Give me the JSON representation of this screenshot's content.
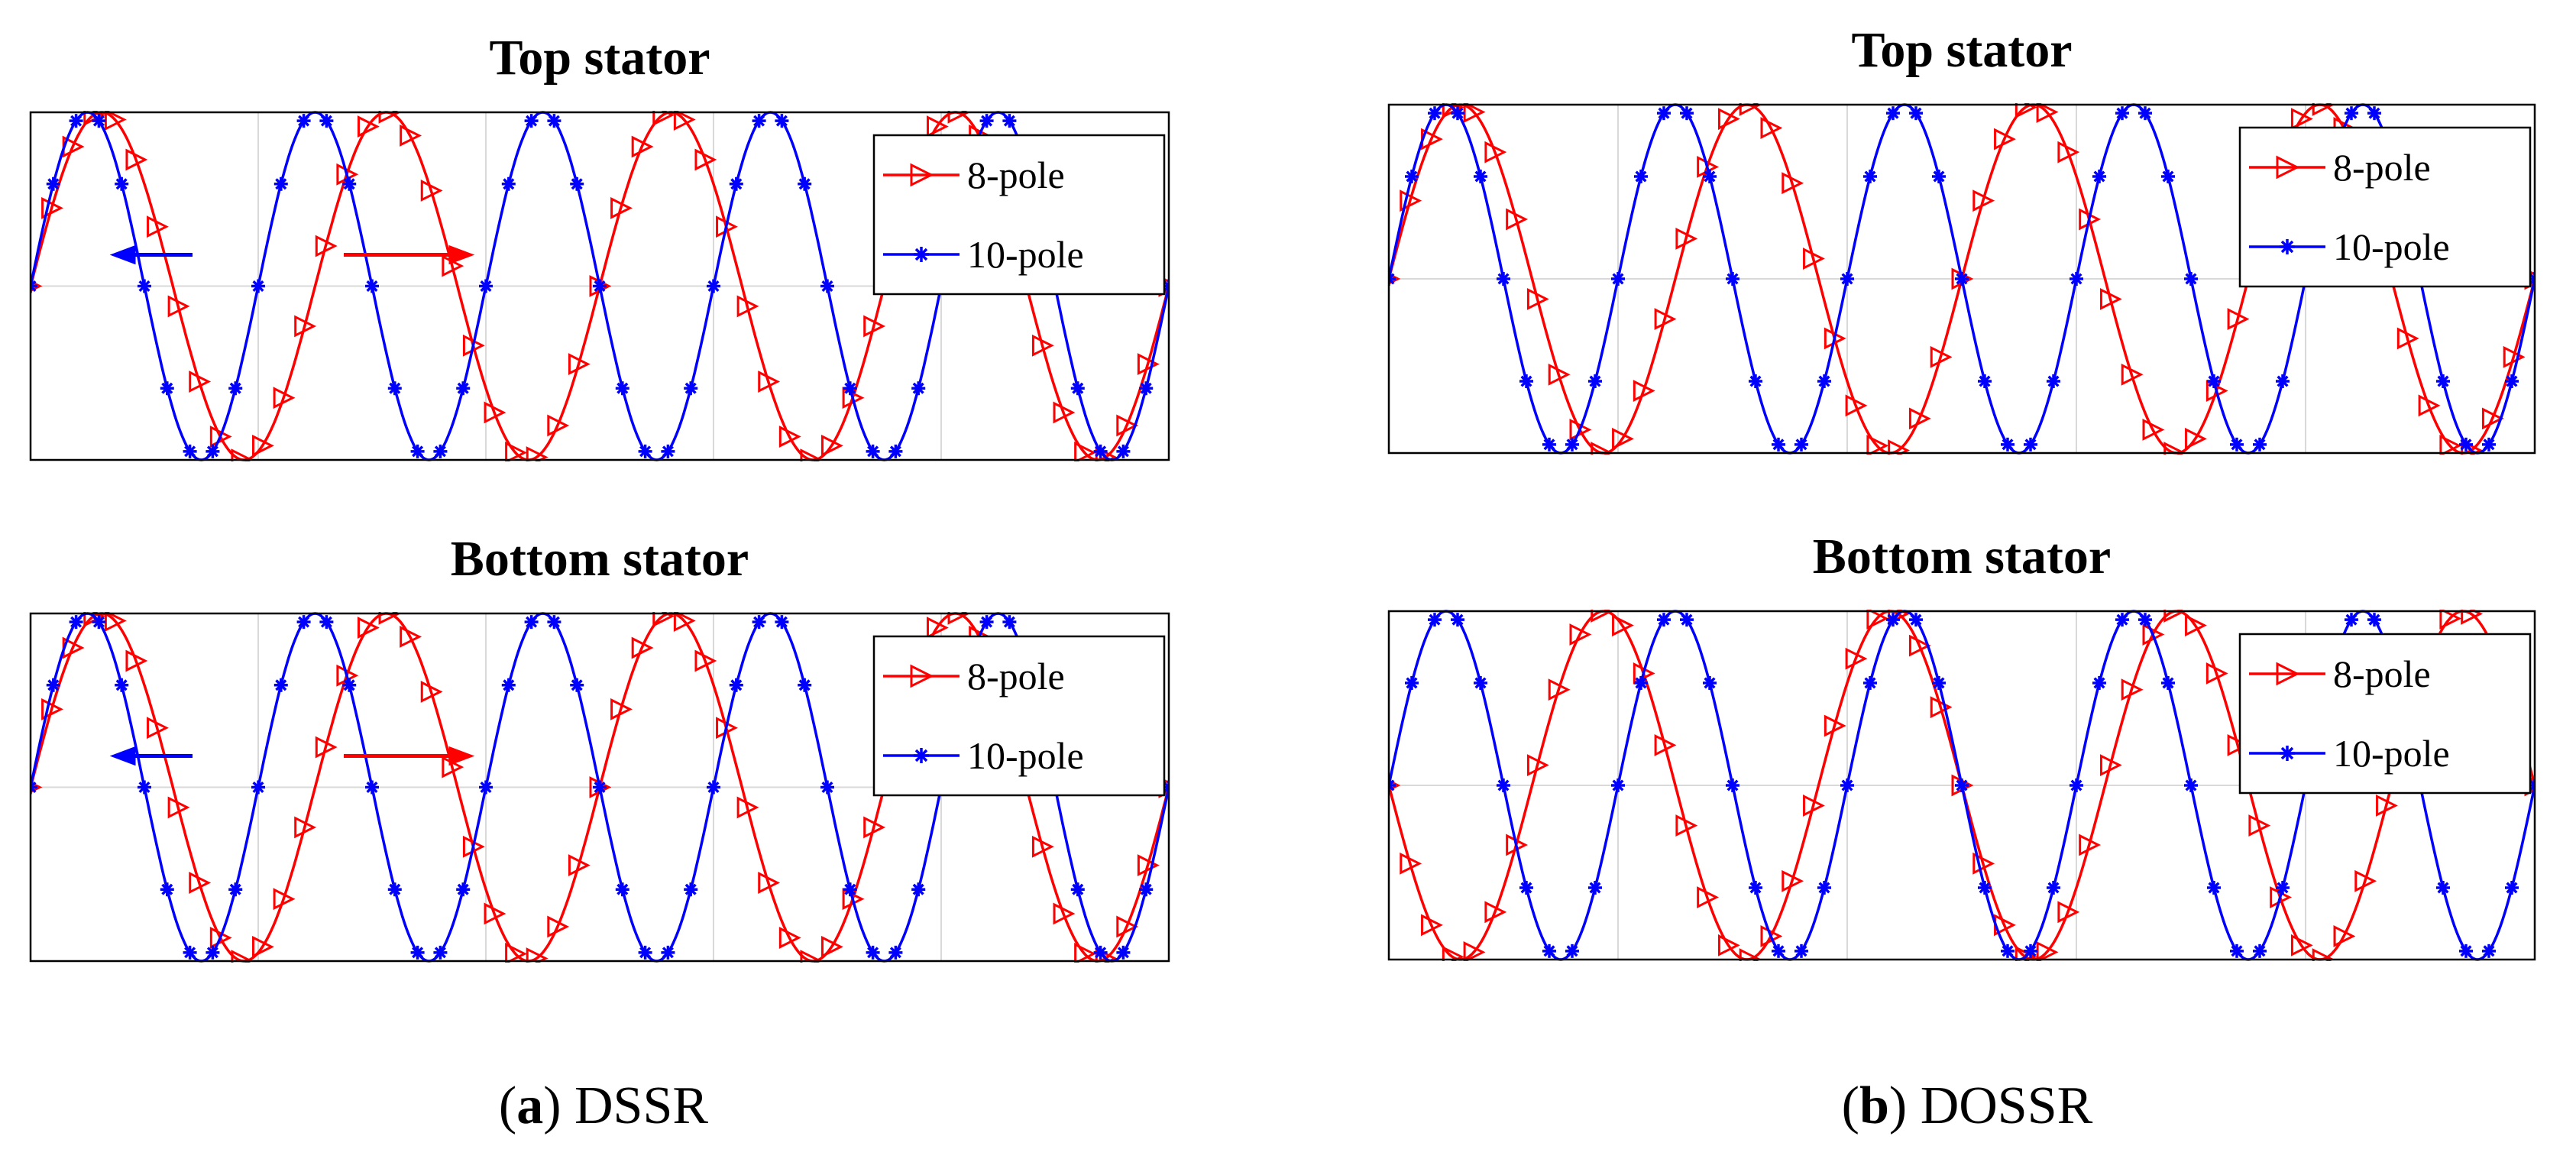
{
  "chart_data": [
    {
      "type": "line",
      "title": "Top stator",
      "group": "a",
      "legend_position": "top-right",
      "grid": true,
      "xlim": [
        0,
        1
      ],
      "ylim": [
        -1,
        1
      ],
      "arrows": [
        {
          "direction": "left",
          "color": "#0000ff"
        },
        {
          "direction": "right",
          "color": "#ff0000"
        }
      ],
      "series": [
        {
          "name": "8-pole",
          "color": "#ff0000",
          "marker": "triangle-right",
          "poles": 8,
          "phase": 0
        },
        {
          "name": "10-pole",
          "color": "#0000ff",
          "marker": "asterisk",
          "poles": 10,
          "phase": 0
        }
      ]
    },
    {
      "type": "line",
      "title": "Bottom stator",
      "group": "a",
      "legend_position": "top-right",
      "grid": true,
      "xlim": [
        0,
        1
      ],
      "ylim": [
        -1,
        1
      ],
      "arrows": [
        {
          "direction": "left",
          "color": "#0000ff"
        },
        {
          "direction": "right",
          "color": "#ff0000"
        }
      ],
      "series": [
        {
          "name": "8-pole",
          "color": "#ff0000",
          "marker": "triangle-right",
          "poles": 8,
          "phase": 0
        },
        {
          "name": "10-pole",
          "color": "#0000ff",
          "marker": "asterisk",
          "poles": 10,
          "phase": 0
        }
      ]
    },
    {
      "type": "line",
      "title": "Top stator",
      "group": "b",
      "legend_position": "top-right",
      "grid": true,
      "xlim": [
        0,
        1
      ],
      "ylim": [
        -1,
        1
      ],
      "arrows": [],
      "series": [
        {
          "name": "8-pole",
          "color": "#ff0000",
          "marker": "triangle-right",
          "poles": 8,
          "phase": 0
        },
        {
          "name": "10-pole",
          "color": "#0000ff",
          "marker": "asterisk",
          "poles": 10,
          "phase": 0
        }
      ]
    },
    {
      "type": "line",
      "title": "Bottom stator",
      "group": "b",
      "legend_position": "top-right",
      "grid": true,
      "xlim": [
        0,
        1
      ],
      "ylim": [
        -1,
        1
      ],
      "arrows": [],
      "series": [
        {
          "name": "8-pole",
          "color": "#ff0000",
          "marker": "triangle-right",
          "poles": 8,
          "phase": 180
        },
        {
          "name": "10-pole",
          "color": "#0000ff",
          "marker": "asterisk",
          "poles": 10,
          "phase": 0
        }
      ]
    }
  ],
  "captions": {
    "a": {
      "label": "a",
      "text": "DSSR"
    },
    "b": {
      "label": "b",
      "text": "DOSSR"
    }
  }
}
